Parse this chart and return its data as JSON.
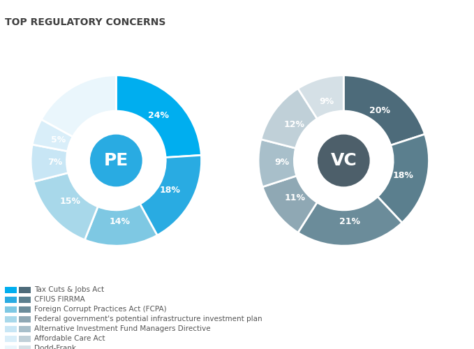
{
  "title": "TOP REGULATORY CONCERNS",
  "pe_values": [
    24,
    18,
    14,
    15,
    7,
    5,
    17
  ],
  "vc_values": [
    20,
    18,
    21,
    11,
    9,
    12,
    9
  ],
  "pe_labels": [
    "24%",
    "18%",
    "14%",
    "15%",
    "7%",
    "5%",
    ""
  ],
  "vc_labels": [
    "20%",
    "18%",
    "21%",
    "11%",
    "9%",
    "12%",
    "9%"
  ],
  "pe_colors": [
    "#00AEEF",
    "#29ABE2",
    "#7EC8E3",
    "#A8D8EA",
    "#C8E6F5",
    "#D9EEF9",
    "#EAF6FC"
  ],
  "vc_colors": [
    "#4D6B7A",
    "#5B7F8E",
    "#6B8C9A",
    "#8FA8B4",
    "#A8BFCA",
    "#C0D0D8",
    "#D5E0E6"
  ],
  "legend_pe_colors": [
    "#00AEEF",
    "#29ABE2",
    "#7EC8E3",
    "#A8D8EA",
    "#C8E6F5",
    "#D9EEF9",
    "#EAF6FC"
  ],
  "legend_vc_colors": [
    "#4D6B7A",
    "#5B7F8E",
    "#6B8C9A",
    "#8FA8B4",
    "#A8BFCA",
    "#C0D0D8",
    "#D5E0E6"
  ],
  "legend_labels": [
    "Tax Cuts & Jobs Act",
    "CFIUS FIRRMA",
    "Foreign Corrupt Practices Act (FCPA)",
    "Federal government's potential infrastructure investment plan",
    "Alternative Investment Fund Managers Directive",
    "Affordable Care Act",
    "Dodd-Frank"
  ],
  "pe_center_label": "PE",
  "vc_center_label": "VC",
  "pe_center_color": "#29ABE2",
  "vc_center_color": "#4D5F6A",
  "background_color": "#FFFFFF",
  "title_color": "#404040",
  "label_color": "#FFFFFF",
  "legend_text_color": "#555555"
}
